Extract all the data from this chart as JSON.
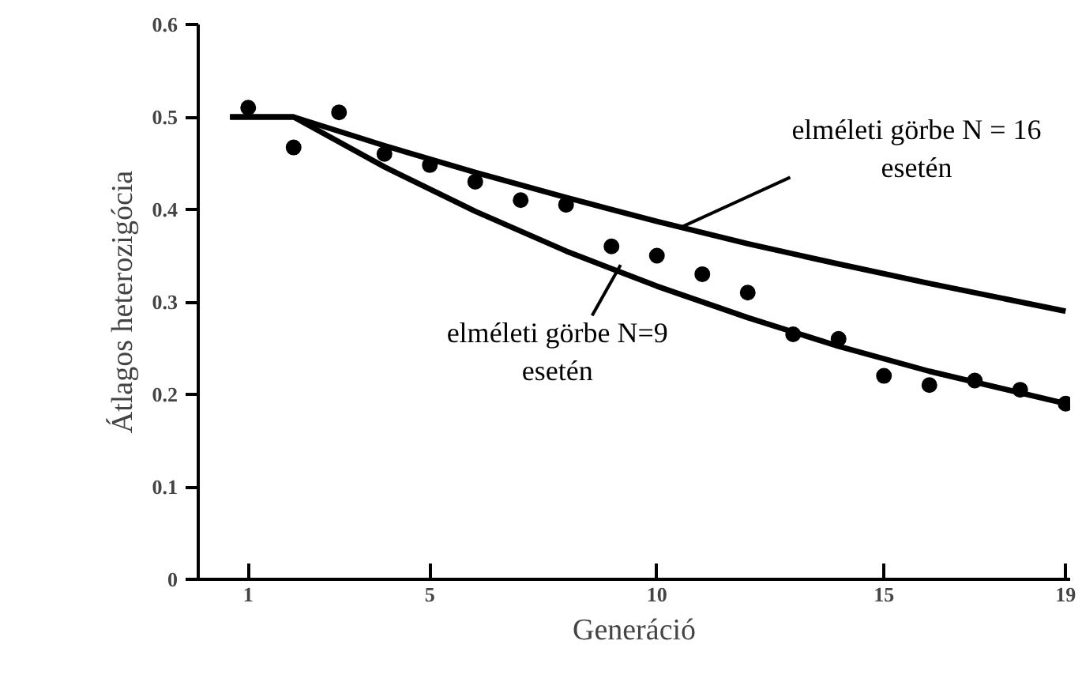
{
  "chart_data": {
    "type": "scatter",
    "xlabel": "Generáció",
    "ylabel": "Átlagos heterozigócia",
    "xlim": [
      -0.1,
      19.1
    ],
    "ylim": [
      0,
      0.6
    ],
    "xticks": [
      1,
      5,
      10,
      15,
      19
    ],
    "yticks": [
      0,
      0.1,
      0.2,
      0.3,
      0.4,
      0.5,
      0.6
    ],
    "grid": false,
    "series": [
      {
        "marker": "circle",
        "color": "#000000",
        "x": [
          1,
          2,
          3,
          4,
          5,
          6,
          7,
          8,
          9,
          10,
          11,
          12,
          13,
          14,
          15,
          16,
          17,
          18,
          19
        ],
        "values": [
          0.51,
          0.467,
          0.505,
          0.46,
          0.448,
          0.43,
          0.41,
          0.405,
          0.36,
          0.35,
          0.33,
          0.31,
          0.265,
          0.26,
          0.22,
          0.21,
          0.215,
          0.205,
          0.19
        ]
      },
      {
        "type": "line",
        "color": "#000000",
        "line_style": "solid",
        "x": [
          0.6,
          2,
          4,
          6,
          8,
          10,
          12,
          14,
          16,
          19
        ],
        "values": [
          0.5,
          0.5,
          0.469,
          0.44,
          0.413,
          0.387,
          0.363,
          0.341,
          0.32,
          0.29
        ]
      },
      {
        "type": "line",
        "color": "#000000",
        "line_style": "solid",
        "x": [
          0.6,
          2,
          4,
          6,
          8,
          10,
          12,
          14,
          16,
          19
        ],
        "values": [
          0.5,
          0.5,
          0.446,
          0.398,
          0.355,
          0.317,
          0.283,
          0.252,
          0.225,
          0.19
        ]
      }
    ],
    "annotations": [
      {
        "text": "elméleti görbe N = 16 esetén",
        "x": 10.5,
        "y": 0.38
      },
      {
        "text": "elméleti görbe N=9 esetén",
        "x": 9.2,
        "y": 0.34
      }
    ]
  }
}
